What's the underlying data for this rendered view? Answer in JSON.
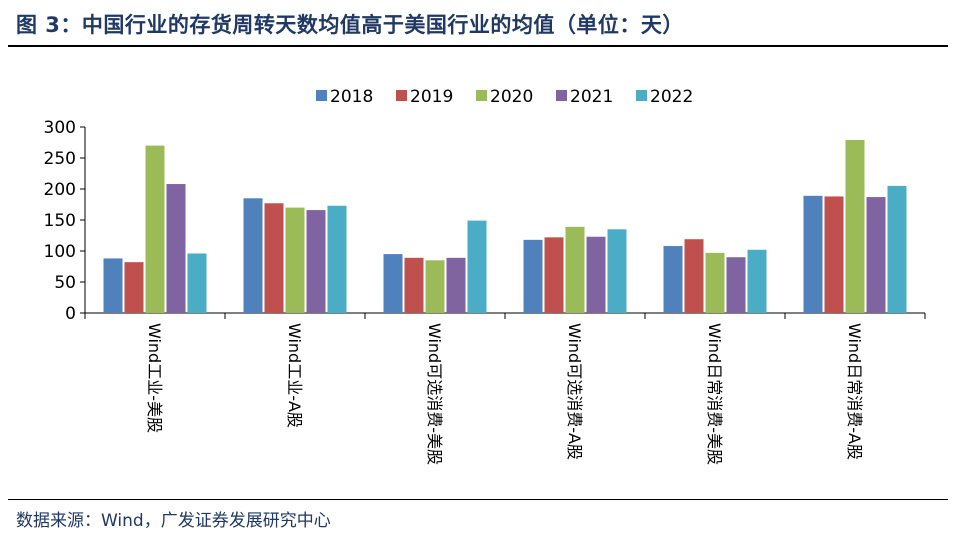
{
  "header": {
    "title": "图 3：中国行业的存货周转天数均值高于美国行业的均值（单位：天）"
  },
  "footer": {
    "source": "数据来源：Wind，广发证券发展研究中心"
  },
  "chart_data": {
    "type": "bar",
    "categories": [
      "Wind工业-美股",
      "Wind工业-A股",
      "Wind可选消费-美股",
      "Wind可选消费-A股",
      "Wind日常消费-美股",
      "Wind日常消费-A股"
    ],
    "series": [
      {
        "name": "2018",
        "color": "#4f81bd",
        "values": [
          88,
          185,
          95,
          118,
          108,
          189
        ]
      },
      {
        "name": "2019",
        "color": "#c0504d",
        "values": [
          82,
          177,
          89,
          122,
          119,
          188
        ]
      },
      {
        "name": "2020",
        "color": "#9bbb59",
        "values": [
          270,
          170,
          85,
          139,
          97,
          279
        ]
      },
      {
        "name": "2021",
        "color": "#8064a2",
        "values": [
          208,
          166,
          89,
          123,
          90,
          187
        ]
      },
      {
        "name": "2022",
        "color": "#4bacc6",
        "values": [
          96,
          173,
          149,
          135,
          102,
          205
        ]
      }
    ],
    "yticks": [
      0,
      50,
      100,
      150,
      200,
      250,
      300
    ],
    "ylim": [
      0,
      300
    ],
    "grid": false,
    "legend_position": "top-center"
  }
}
